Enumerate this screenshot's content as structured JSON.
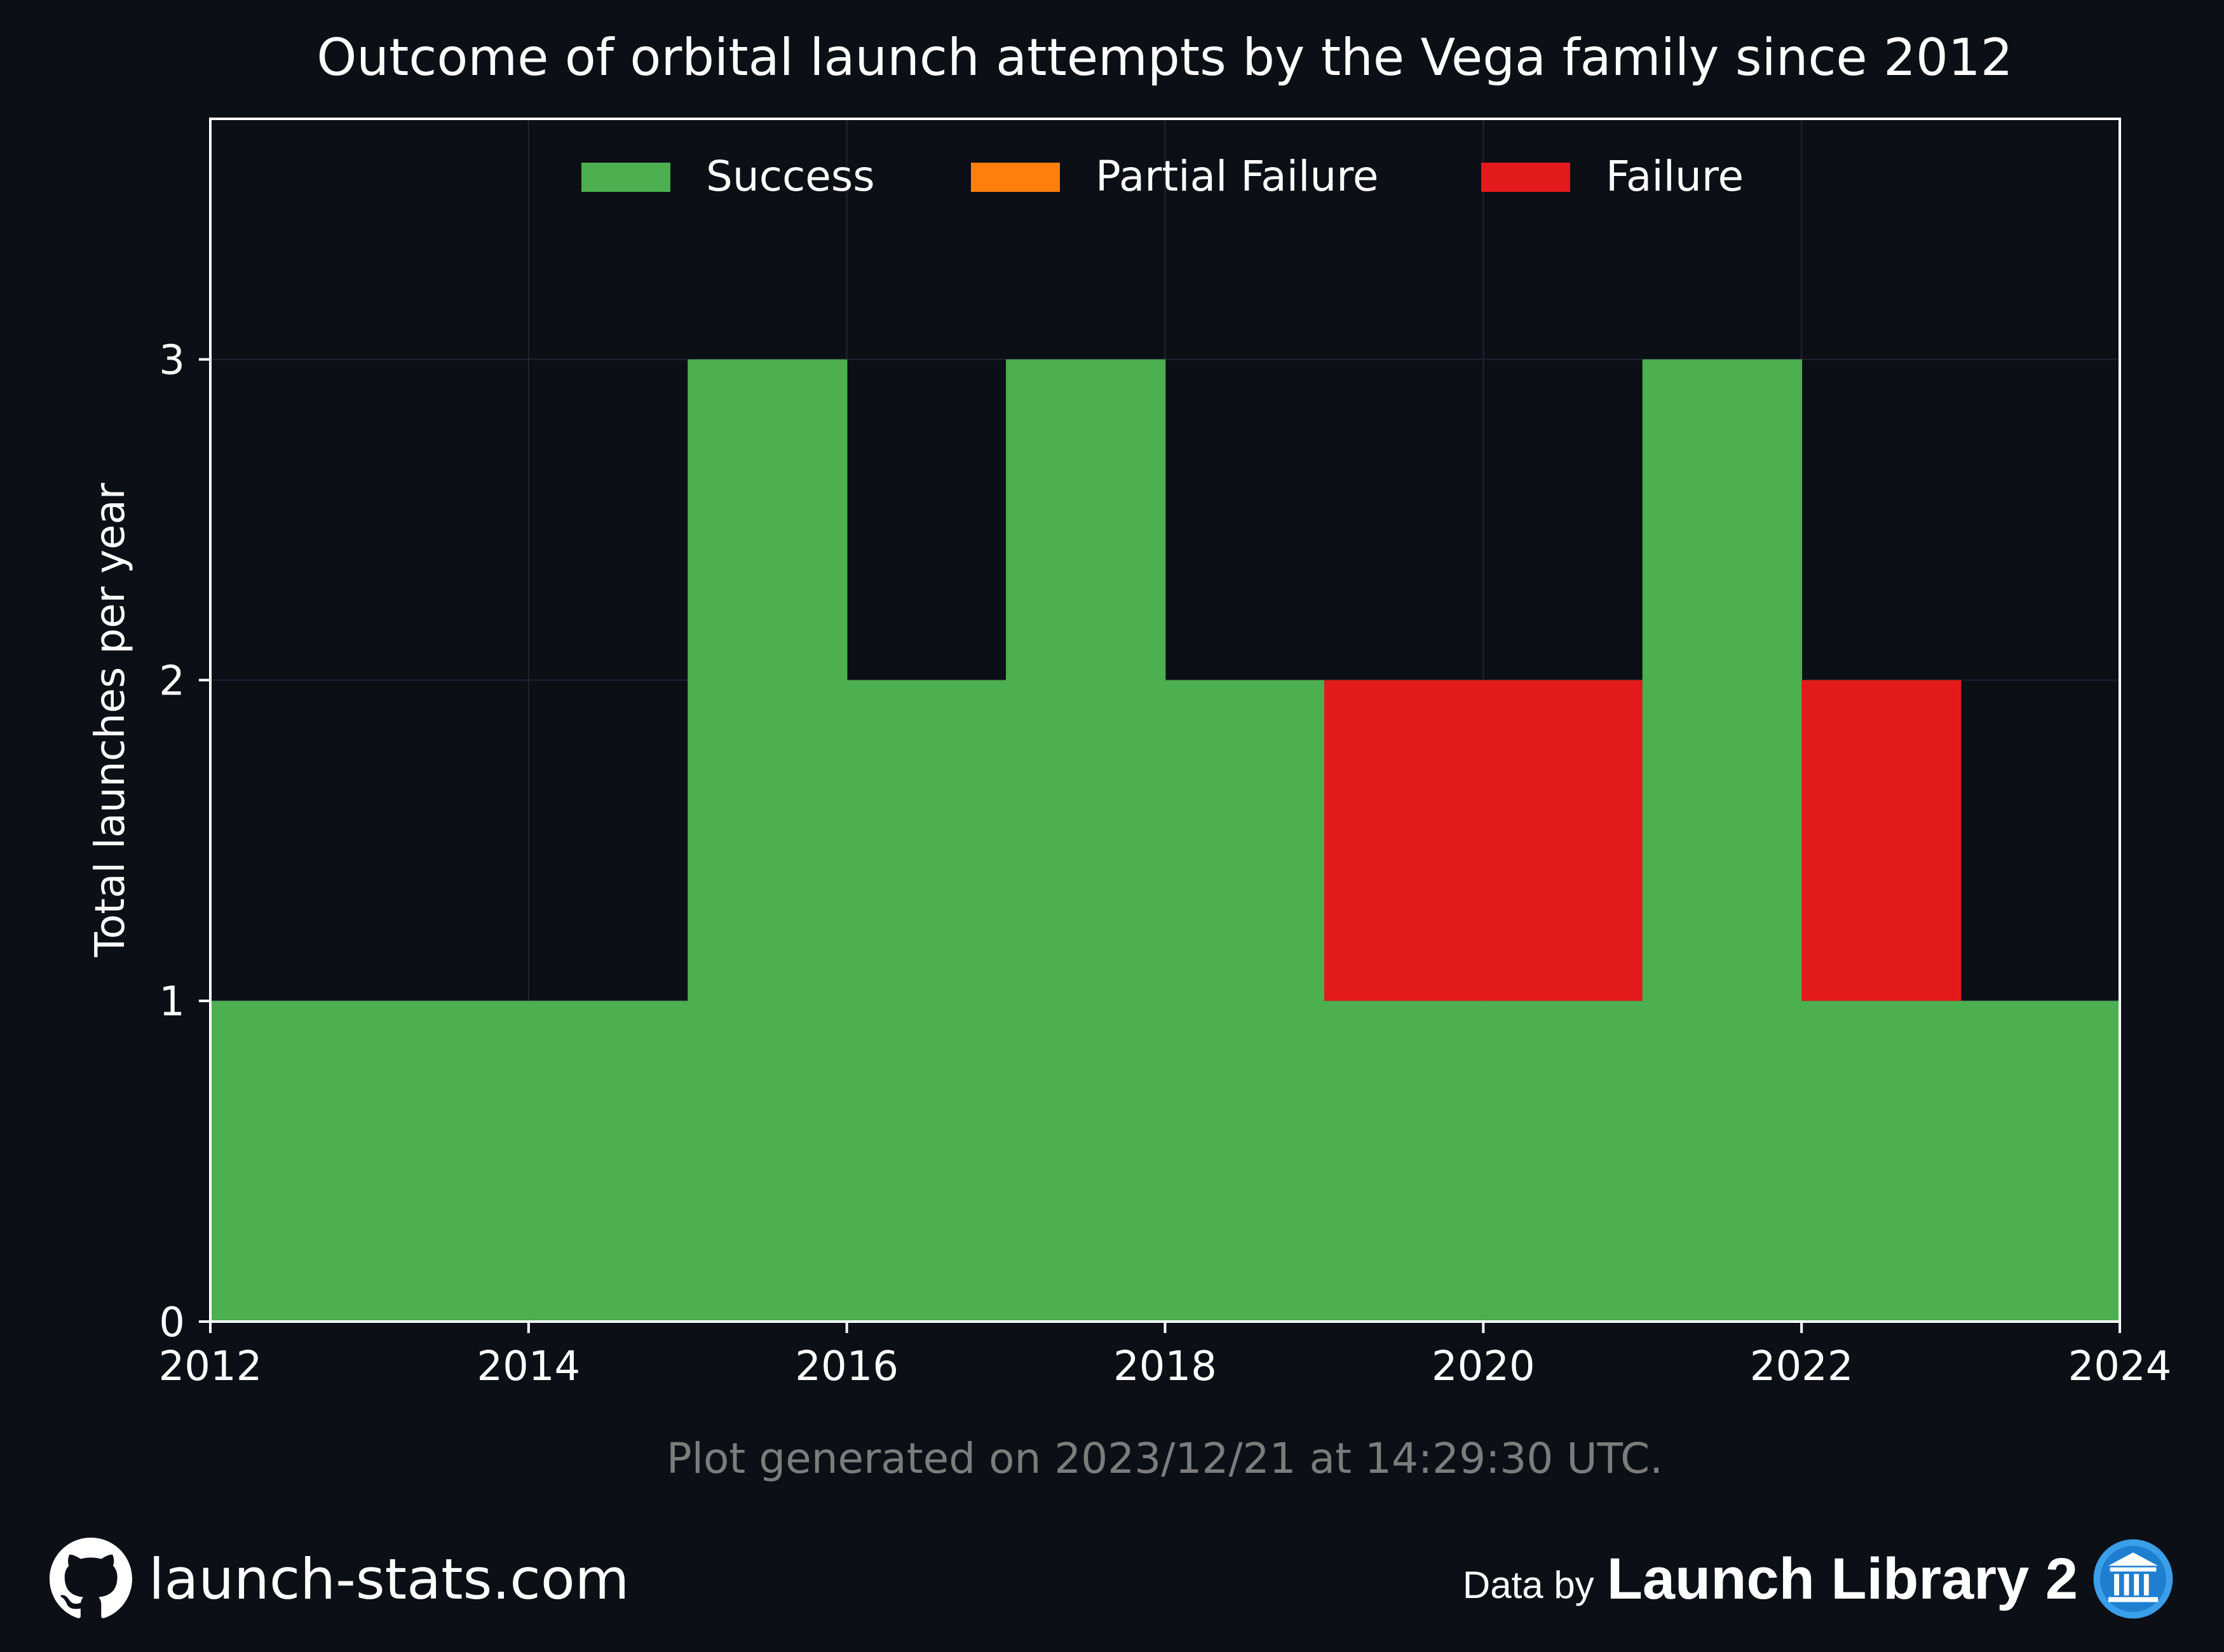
{
  "chart_data": {
    "type": "bar",
    "stacked": true,
    "title": "Outcome of orbital launch attempts by the Vega family since 2012",
    "ylabel": "Total launches per year",
    "xlabel": "",
    "x_bins": [
      2012,
      2013,
      2014,
      2015,
      2016,
      2017,
      2018,
      2019,
      2020,
      2021,
      2022,
      2023
    ],
    "series": [
      {
        "name": "Success",
        "color": "#4caf50",
        "values": [
          1,
          1,
          1,
          3,
          2,
          3,
          2,
          1,
          1,
          3,
          1,
          1
        ]
      },
      {
        "name": "Partial Failure",
        "color": "#ff7f0e",
        "values": [
          0,
          0,
          0,
          0,
          0,
          0,
          0,
          0,
          0,
          0,
          0,
          0
        ]
      },
      {
        "name": "Failure",
        "color": "#e31a1c",
        "values": [
          0,
          0,
          0,
          0,
          0,
          0,
          0,
          1,
          1,
          0,
          1,
          0
        ]
      }
    ],
    "xlim": [
      2012,
      2024
    ],
    "ylim": [
      0,
      3.75
    ],
    "xticks": [
      "2012",
      "2014",
      "2016",
      "2018",
      "2020",
      "2022",
      "2024"
    ],
    "yticks": [
      "0",
      "1",
      "2",
      "3"
    ],
    "grid": true,
    "legend_position": "top-center"
  },
  "footer": {
    "generated": "Plot generated on 2023/12/21 at 14:29:30 UTC.",
    "site": "launch-stats.com",
    "data_by": "Data by",
    "source": "Launch Library 2",
    "github_icon": "github-icon",
    "source_icon": "launch-library-icon"
  }
}
